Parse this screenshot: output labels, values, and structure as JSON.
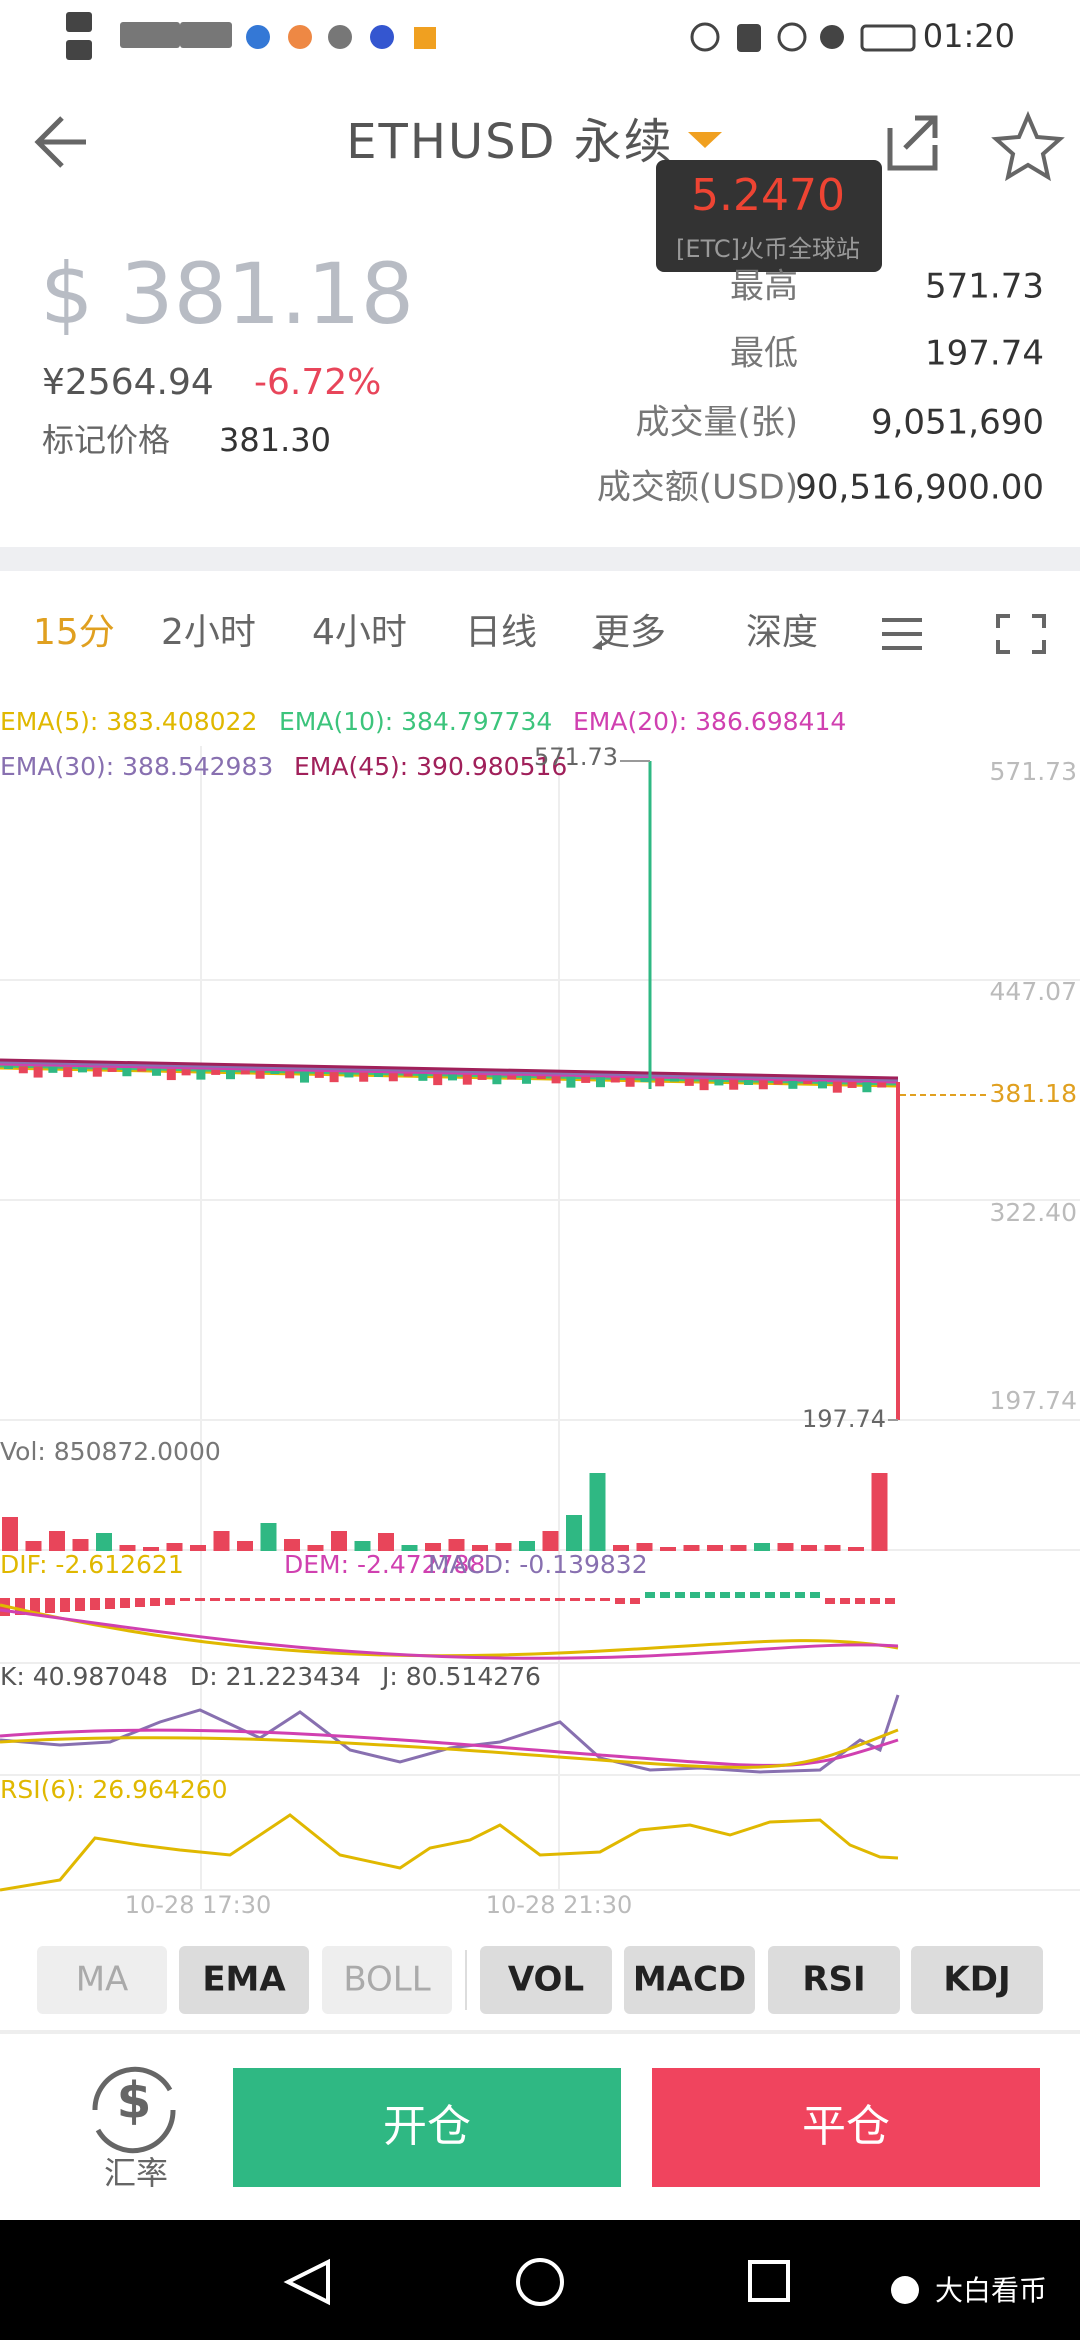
{
  "status_bar": {
    "time": "01:20"
  },
  "header": {
    "title": "ETHUSD 永续"
  },
  "tooltip": {
    "value": "5.2470",
    "source": "[ETC]火币全球站"
  },
  "summary": {
    "price": "$ 381.18",
    "cny": "¥2564.94",
    "change": "-6.72%",
    "mark_label": "标记价格",
    "mark_price": "381.30",
    "stats": [
      {
        "label": "最高",
        "value": "571.73"
      },
      {
        "label": "最低",
        "value": "197.74"
      },
      {
        "label": "成交量(张)",
        "value": "9,051,690"
      },
      {
        "label": "成交额(USD)",
        "value": "90,516,900.00"
      }
    ]
  },
  "tabs": [
    "15分",
    "2小时",
    "4小时",
    "日线",
    "更多",
    "深度"
  ],
  "chart": {
    "legend": [
      "EMA(5): 383.408022",
      "EMA(10): 384.797734",
      "EMA(20): 386.698414",
      "EMA(30): 388.542983",
      "EMA(45): 390.980516"
    ],
    "high_label": "571.73",
    "low_label": "197.74",
    "last_price": "381.18",
    "axis_labels": [
      "571.73",
      "447.07",
      "322.40",
      "197.74"
    ],
    "vol": "Vol: 850872.0000",
    "macd": [
      "DIF: -2.612621",
      "DEM: -2.472788",
      "MACD: -0.139832"
    ],
    "kdj": [
      "K: 40.987048",
      "D: 21.223434",
      "J: 80.514276"
    ],
    "rsi": "RSI(6): 26.964260",
    "time_labels": [
      "10-28 17:30",
      "10-28 21:30"
    ]
  },
  "indicators": [
    "MA",
    "EMA",
    "BOLL",
    "VOL",
    "MACD",
    "RSI",
    "KDJ"
  ],
  "actions": {
    "rate": "汇率",
    "open": "开仓",
    "close": "平仓"
  },
  "watermark": "大白看币"
}
